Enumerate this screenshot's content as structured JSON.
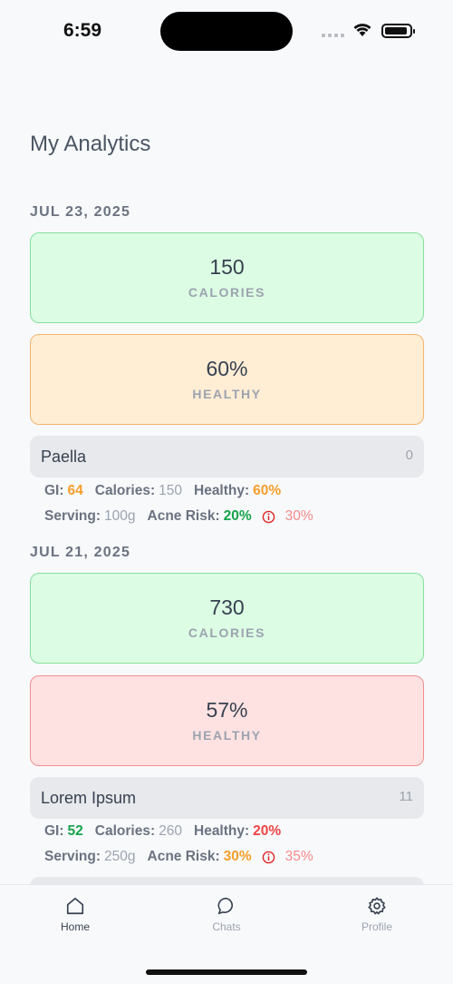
{
  "status": {
    "time": "6:59"
  },
  "page": {
    "title": "My Analytics"
  },
  "sections": [
    {
      "date": "JUL 23, 2025",
      "calories_value": "150",
      "calories_label": "CALORIES",
      "healthy_value": "60%",
      "healthy_label": "HEALTHY",
      "food": {
        "name": "Paella",
        "count": "0",
        "gi_label": "GI:",
        "gi": "64",
        "calories_label": "Calories:",
        "calories": "150",
        "healthy_label": "Healthy:",
        "healthy": "60%",
        "serving_label": "Serving:",
        "serving": "100g",
        "acne_label": "Acne Risk:",
        "acne": "20%",
        "acne_alt": "30%"
      }
    },
    {
      "date": "JUL 21, 2025",
      "calories_value": "730",
      "calories_label": "CALORIES",
      "healthy_value": "57%",
      "healthy_label": "HEALTHY",
      "food": {
        "name": "Lorem Ipsum",
        "count": "11",
        "gi_label": "GI:",
        "gi": "52",
        "calories_label": "Calories:",
        "calories": "260",
        "healthy_label": "Healthy:",
        "healthy": "20%",
        "serving_label": "Serving:",
        "serving": "250g",
        "acne_label": "Acne Risk:",
        "acne": "30%",
        "acne_alt": "35%"
      }
    }
  ],
  "tabs": [
    {
      "label": "Home",
      "icon": "home-icon",
      "active": true
    },
    {
      "label": "Chats",
      "icon": "chat-icon",
      "active": false
    },
    {
      "label": "Profile",
      "icon": "gear-icon",
      "active": false
    }
  ],
  "colors": {
    "calories_card": "#dcfce4",
    "healthy_good": "#ffedd4",
    "healthy_bad": "#fee2e2",
    "accent_orange": "#f59e2b",
    "accent_green": "#16a34a",
    "accent_red": "#ef4444"
  }
}
